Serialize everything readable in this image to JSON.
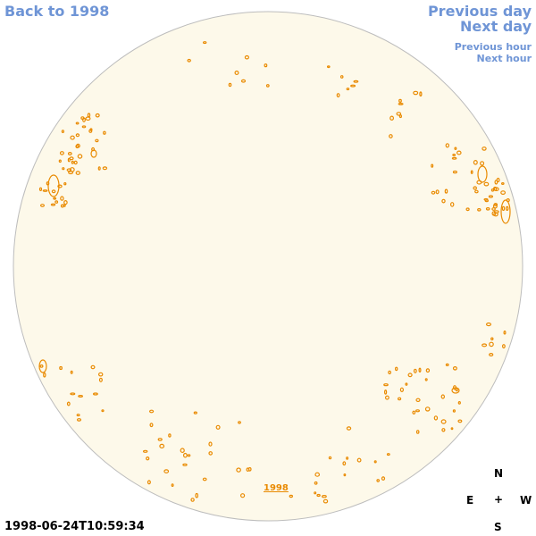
{
  "nav": {
    "back_label": "Back to 1998",
    "prev_day_label": "Previous day",
    "next_day_label": "Next day",
    "prev_hour_label": "Previous hour",
    "next_hour_label": "Next hour"
  },
  "year_marker": "1998",
  "timestamp": "1998-06-24T10:59:34",
  "compass": {
    "north": "N",
    "east": "E",
    "center": "+",
    "west": "W",
    "south": "S"
  },
  "colors": {
    "disk_fill": "#fdf9ea",
    "disk_stroke": "#bdbdbd",
    "contour": "#e98a00",
    "link": "#6f95d6"
  }
}
